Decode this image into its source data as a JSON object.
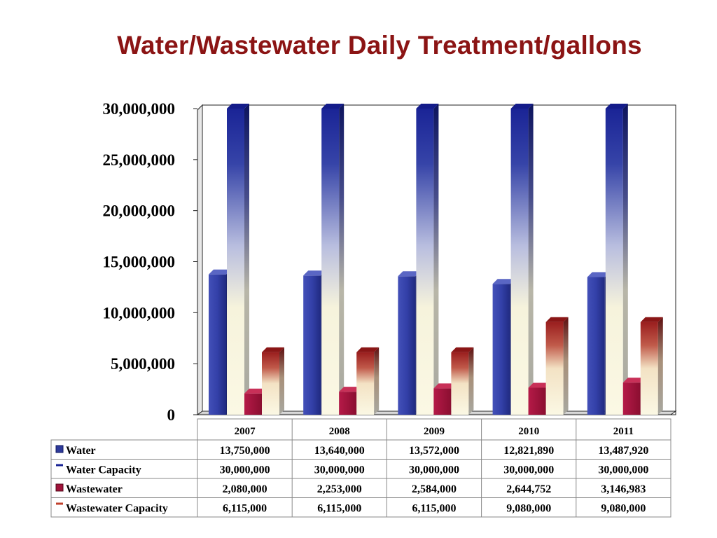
{
  "title": "Water/Wastewater Daily Treatment/gallons",
  "colors": {
    "water": "#2e3a9a",
    "water_capacity_top": "#1a2496",
    "wastewater": "#a0123a",
    "wastewater_capacity_top": "#9a1e1e",
    "cream": "#fbf8e4",
    "title": "#8b1414"
  },
  "chart_data": {
    "type": "bar",
    "title": "Water/Wastewater Daily Treatment/gallons",
    "categories": [
      "2007",
      "2008",
      "2009",
      "2010",
      "2011"
    ],
    "ylim": [
      0,
      30000000
    ],
    "yticks": [
      0,
      5000000,
      10000000,
      15000000,
      20000000,
      25000000,
      30000000
    ],
    "ytick_labels": [
      "0",
      "5,000,000",
      "10,000,000",
      "15,000,000",
      "20,000,000",
      "25,000,000",
      "30,000,000"
    ],
    "legend_placement": "data-table-left",
    "series": [
      {
        "name": "Water",
        "values": [
          13750000,
          13640000,
          13572000,
          12821890,
          13487920
        ],
        "labels": [
          "13,750,000",
          "13,640,000",
          "13,572,000",
          "12,821,890",
          "13,487,920"
        ]
      },
      {
        "name": "Water Capacity",
        "values": [
          30000000,
          30000000,
          30000000,
          30000000,
          30000000
        ],
        "labels": [
          "30,000,000",
          "30,000,000",
          "30,000,000",
          "30,000,000",
          "30,000,000"
        ]
      },
      {
        "name": "Wastewater",
        "values": [
          2080000,
          2253000,
          2584000,
          2644752,
          3146983
        ],
        "labels": [
          "2,080,000",
          "2,253,000",
          "2,584,000",
          "2,644,752",
          "3,146,983"
        ]
      },
      {
        "name": "Wastewater Capacity",
        "values": [
          6115000,
          6115000,
          6115000,
          9080000,
          9080000
        ],
        "labels": [
          "6,115,000",
          "6,115,000",
          "6,115,000",
          "9,080,000",
          "9,080,000"
        ]
      }
    ]
  }
}
